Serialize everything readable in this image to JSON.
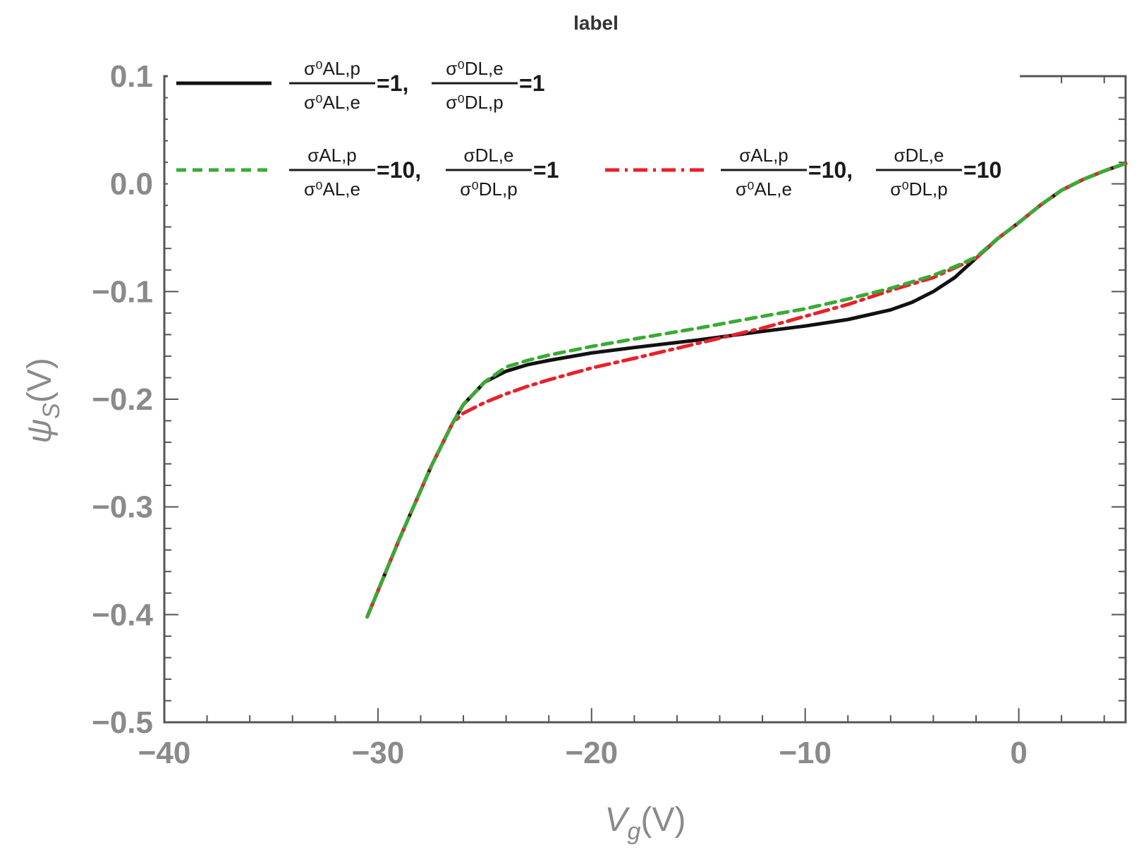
{
  "chart_data": {
    "type": "line",
    "title": "label",
    "xlabel": "V",
    "xlabel_sub": "g",
    "xlabel_unit": "(V)",
    "ylabel": "ψ",
    "ylabel_sub": "S",
    "ylabel_unit": "(V)",
    "xlim": [
      -40,
      5
    ],
    "ylim": [
      -0.5,
      0.1
    ],
    "xticks": [
      -40,
      -30,
      -20,
      -10,
      0
    ],
    "xtick_labels": [
      "−40",
      "−30",
      "−20",
      "−10",
      "0"
    ],
    "yticks": [
      0.1,
      0.0,
      -0.1,
      -0.2,
      -0.3,
      -0.4,
      -0.5
    ],
    "ytick_labels": [
      "0.1",
      "0.0",
      "−0.1",
      "−0.2",
      "−0.3",
      "−0.4",
      "−0.5"
    ],
    "legend_position": "top",
    "series": [
      {
        "name": "σ0AL,p/σ0AL,e=1, σ0DL,e/σ0DL,p=1",
        "color": "#111111",
        "style": "solid",
        "legend": {
          "f1_num": "σ⁰AL,p",
          "f1_den": "σ⁰AL,e",
          "f1_tail": "=1,",
          "f2_num": "σ⁰DL,e",
          "f2_den": "σ⁰DL,p",
          "f2_tail": "=1"
        },
        "x": [
          -30.5,
          -29,
          -27.5,
          -26.5,
          -26,
          -25,
          -24,
          -23,
          -22,
          -20,
          -18,
          -15,
          -12,
          -10,
          -8,
          -6,
          -5,
          -4,
          -3,
          -2.5,
          -2,
          -1,
          0,
          1,
          2,
          3,
          4,
          5
        ],
        "y": [
          -0.402,
          -0.33,
          -0.262,
          -0.222,
          -0.205,
          -0.184,
          -0.174,
          -0.168,
          -0.164,
          -0.157,
          -0.152,
          -0.145,
          -0.137,
          -0.132,
          -0.126,
          -0.117,
          -0.11,
          -0.1,
          -0.087,
          -0.078,
          -0.069,
          -0.051,
          -0.036,
          -0.02,
          -0.006,
          0.004,
          0.012,
          0.019
        ]
      },
      {
        "name": "σAL,p/σ0AL,e=10, σDL,e/σ0DL,p=1",
        "color": "#3aaa35",
        "style": "dashed",
        "legend": {
          "f1_num": "σAL,p",
          "f1_den": "σ⁰AL,e",
          "f1_tail": "=10,",
          "f2_num": "σDL,e",
          "f2_den": "σ⁰DL,p",
          "f2_tail": "=1"
        },
        "x": [
          -30.5,
          -29,
          -27.5,
          -26.5,
          -26,
          -25,
          -24,
          -23,
          -22,
          -20,
          -18,
          -15,
          -12,
          -10,
          -8,
          -6,
          -5,
          -4,
          -3,
          -2,
          -1,
          0,
          1,
          2,
          3,
          4,
          5
        ],
        "y": [
          -0.402,
          -0.33,
          -0.262,
          -0.222,
          -0.205,
          -0.184,
          -0.17,
          -0.164,
          -0.159,
          -0.151,
          -0.144,
          -0.134,
          -0.123,
          -0.116,
          -0.107,
          -0.097,
          -0.091,
          -0.085,
          -0.077,
          -0.068,
          -0.051,
          -0.036,
          -0.02,
          -0.006,
          0.004,
          0.012,
          0.019
        ]
      },
      {
        "name": "σAL,p/σ0AL,e=10, σDL,e/σ0DL,p=10",
        "color": "#e8202a",
        "style": "dashdot",
        "legend": {
          "f1_num": "σAL,p",
          "f1_den": "σ⁰AL,e",
          "f1_tail": "=10,",
          "f2_num": "σDL,e",
          "f2_den": "σ⁰DL,p",
          "f2_tail": "=10"
        },
        "x": [
          -30.5,
          -29,
          -27.5,
          -26.5,
          -26,
          -25,
          -24,
          -23,
          -22,
          -20,
          -18,
          -15,
          -12,
          -10,
          -8,
          -6,
          -5,
          -4,
          -3,
          -2,
          -1,
          0,
          1,
          2,
          3,
          4,
          5
        ],
        "y": [
          -0.402,
          -0.33,
          -0.262,
          -0.222,
          -0.213,
          -0.203,
          -0.195,
          -0.188,
          -0.182,
          -0.171,
          -0.162,
          -0.148,
          -0.134,
          -0.123,
          -0.112,
          -0.099,
          -0.093,
          -0.087,
          -0.078,
          -0.069,
          -0.051,
          -0.036,
          -0.02,
          -0.006,
          0.004,
          0.012,
          0.019
        ]
      }
    ]
  }
}
